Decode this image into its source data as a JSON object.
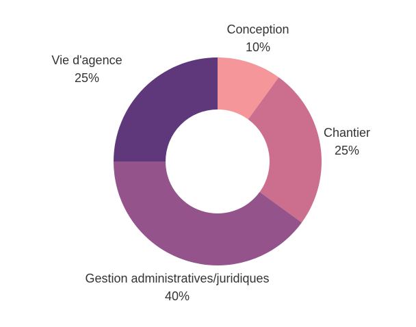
{
  "chart_data": {
    "type": "pie",
    "variant": "donut",
    "title": "",
    "legend": false,
    "start_angle_deg": 0,
    "direction": "clockwise",
    "slices": [
      {
        "label": "Conception",
        "value": 10,
        "value_label": "10%",
        "color": "#f4969a"
      },
      {
        "label": "Chantier",
        "value": 25,
        "value_label": "25%",
        "color": "#cc6f8f"
      },
      {
        "label": "Gestion administratives/juridiques",
        "value": 40,
        "value_label": "40%",
        "color": "#94538b"
      },
      {
        "label": "Vie d'agence",
        "value": 25,
        "value_label": "25%",
        "color": "#5f377b"
      }
    ]
  }
}
